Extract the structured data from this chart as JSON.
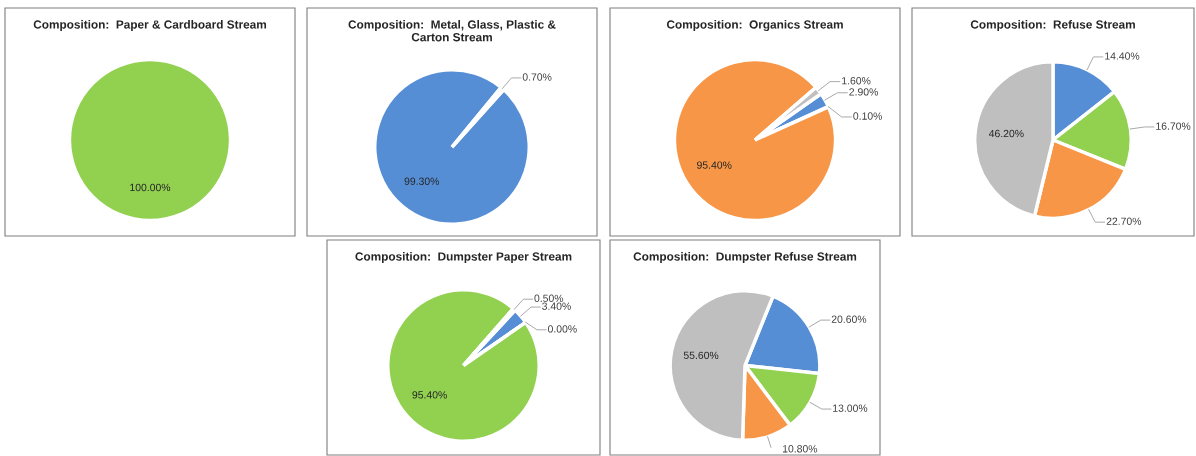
{
  "chart_data": [
    {
      "type": "pie",
      "title": "Composition:  Paper & Cardboard Stream",
      "categories": [
        null
      ],
      "values": [
        100.0
      ],
      "colors": [
        "#92d050"
      ],
      "value_labels": [
        "100.00%"
      ]
    },
    {
      "type": "pie",
      "title": "Composition:  Metal, Glass, Plastic &\nCarton Stream",
      "categories": [
        null,
        null
      ],
      "values": [
        99.3,
        0.7
      ],
      "colors": [
        "#558ed5",
        "#bfbfbf"
      ],
      "value_labels": [
        "99.30%",
        "0.70%"
      ]
    },
    {
      "type": "pie",
      "title": "Composition:  Organics Stream",
      "categories": [
        null,
        null,
        null,
        null
      ],
      "values": [
        2.9,
        0.1,
        95.4,
        1.6
      ],
      "colors": [
        "#558ed5",
        "#92d050",
        "#f79646",
        "#bfbfbf"
      ],
      "value_labels": [
        "2.90%",
        "0.10%",
        "95.40%",
        "1.60%"
      ]
    },
    {
      "type": "pie",
      "title": "Composition:  Refuse Stream",
      "categories": [
        null,
        null,
        null,
        null
      ],
      "values": [
        14.4,
        16.7,
        22.7,
        46.2
      ],
      "colors": [
        "#558ed5",
        "#92d050",
        "#f79646",
        "#bfbfbf"
      ],
      "value_labels": [
        "14.40%",
        "16.70%",
        "22.70%",
        "46.20%"
      ]
    },
    {
      "type": "pie",
      "title": "Composition:  Dumpster Paper Stream",
      "categories": [
        null,
        null,
        null,
        null
      ],
      "values": [
        3.4,
        0.0,
        95.4,
        0.5
      ],
      "colors": [
        "#558ed5",
        "#f79646",
        "#92d050",
        "#bfbfbf"
      ],
      "value_labels": [
        "3.40%",
        "0.00%",
        "95.40%",
        "0.50%"
      ]
    },
    {
      "type": "pie",
      "title": "Composition:  Dumpster Refuse Stream",
      "categories": [
        null,
        null,
        null,
        null
      ],
      "values": [
        20.6,
        13.0,
        10.8,
        55.6
      ],
      "colors": [
        "#558ed5",
        "#92d050",
        "#f79646",
        "#bfbfbf"
      ],
      "value_labels": [
        "20.60%",
        "13.00%",
        "10.80%",
        "55.60%"
      ]
    }
  ]
}
